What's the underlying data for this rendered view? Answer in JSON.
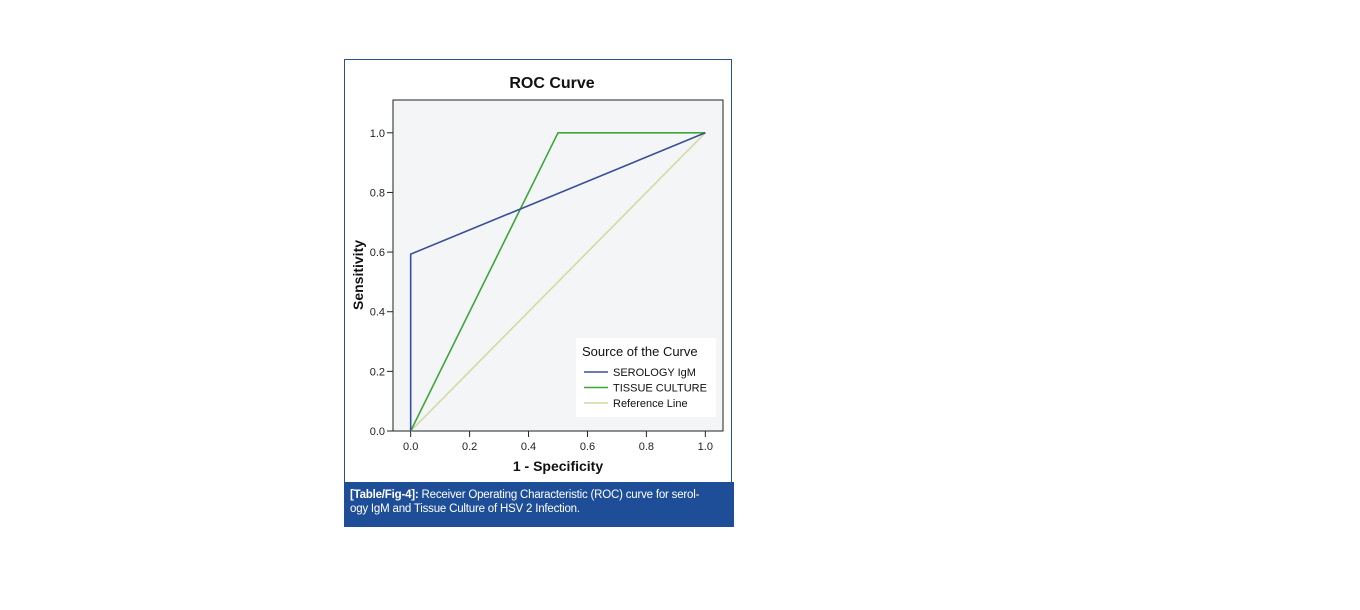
{
  "chart_data": {
    "type": "line",
    "title": "ROC Curve",
    "xlabel": "1 - Specificity",
    "ylabel": "Sensitivity",
    "xlim": [
      -0.06,
      1.06
    ],
    "ylim": [
      0.0,
      1.11
    ],
    "x_ticks": [
      "0.0",
      "0.2",
      "0.4",
      "0.6",
      "0.8",
      "1.0"
    ],
    "y_ticks": [
      "0.0",
      "0.2",
      "0.4",
      "0.6",
      "0.8",
      "1.0"
    ],
    "grid": false,
    "legend_title": "Source of the Curve",
    "legend_position": "bottom-right",
    "series": [
      {
        "name": "SEROLOGY IgM",
        "color": "#3a4f9a",
        "points": [
          [
            0.0,
            0.0
          ],
          [
            0.0,
            0.593
          ],
          [
            1.0,
            1.0
          ]
        ]
      },
      {
        "name": "TISSUE CULTURE",
        "color": "#3ea63a",
        "points": [
          [
            0.0,
            0.0
          ],
          [
            0.5,
            1.0
          ],
          [
            1.0,
            1.0
          ]
        ]
      },
      {
        "name": "Reference Line",
        "color": "#d4d9a3",
        "points": [
          [
            0.0,
            0.0
          ],
          [
            1.0,
            1.0
          ]
        ]
      }
    ]
  },
  "caption": {
    "tag": "[Table/Fig-4]:",
    "line1": "Receiver Operating Characteristic (ROC) curve for serol-",
    "line2": "ogy IgM and Tissue Culture of HSV 2 Infection."
  },
  "colors": {
    "plot_background": "#f3f5f7",
    "caption_background": "#1f4e99",
    "frame_border": "#2a4f97"
  }
}
